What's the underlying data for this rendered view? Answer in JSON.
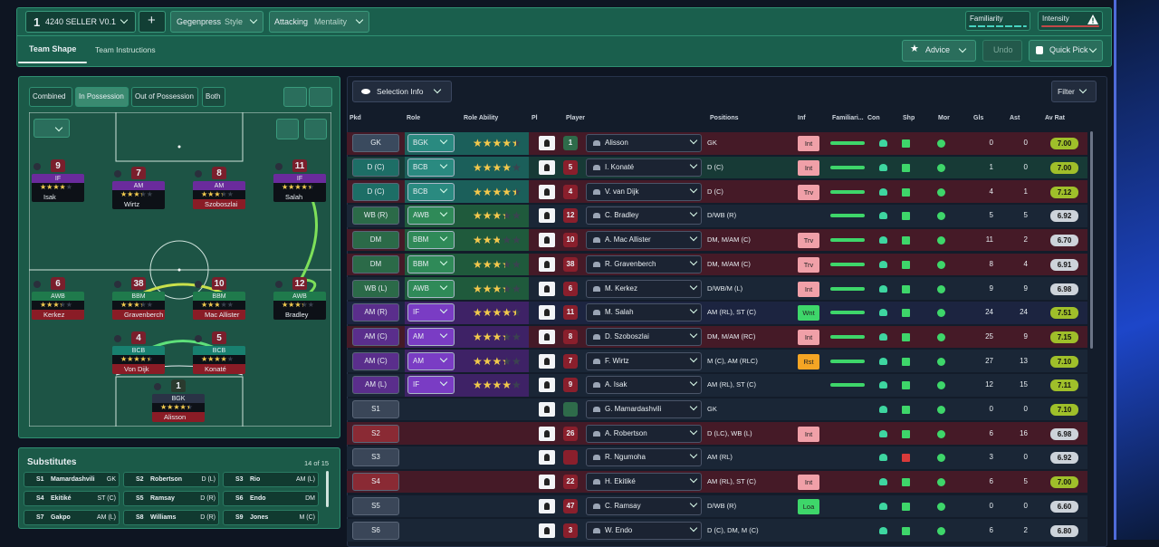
{
  "header": {
    "tactic_number": "1",
    "tactic_name": "4240 SELLER V0.1",
    "add": "+",
    "style_value": "Gegenpress",
    "style_label": "Style",
    "mentality_value": "Attacking",
    "mentality_label": "Mentality",
    "familiarity": "Familiarity",
    "intensity": "Intensity"
  },
  "tabs": [
    "Team Shape",
    "Team Instructions"
  ],
  "actions": {
    "advice": "Advice",
    "undo": "Undo",
    "quick_pick": "Quick Pick"
  },
  "pitch": {
    "views": [
      "Combined",
      "In Possession",
      "Out of Possession",
      "Both"
    ],
    "players": [
      {
        "number": 9,
        "role": "IF",
        "stars": 3.5,
        "name": "Isak"
      },
      {
        "number": 7,
        "role": "AM",
        "stars": 3,
        "name": "Wirtz"
      },
      {
        "number": 8,
        "role": "AM",
        "stars": 3,
        "name": "Szoboszlai"
      },
      {
        "number": 11,
        "role": "IF",
        "stars": 4,
        "name": "Salah"
      },
      {
        "number": 6,
        "role": "AWB",
        "stars": 3,
        "name": "Kerkez"
      },
      {
        "number": 38,
        "role": "BBM",
        "stars": 3,
        "name": "Gravenberch"
      },
      {
        "number": 10,
        "role": "BBM",
        "stars": 2.5,
        "name": "Mac Allister"
      },
      {
        "number": 12,
        "role": "AWB",
        "stars": 3,
        "name": "Bradley"
      },
      {
        "number": 4,
        "role": "BCB",
        "stars": 4,
        "name": "Von Dijk"
      },
      {
        "number": 5,
        "role": "BCB",
        "stars": 3.5,
        "name": "Konaté"
      },
      {
        "number": 1,
        "role": "BGK",
        "stars": 4,
        "name": "Alisson"
      }
    ]
  },
  "substitutes": {
    "title": "Substitutes",
    "count": "14 of 15",
    "players": [
      {
        "slot": "S1",
        "name": "Mamardashvili",
        "position": "GK"
      },
      {
        "slot": "S2",
        "name": "Robertson",
        "position": "D (L)"
      },
      {
        "slot": "S3",
        "name": "Rio",
        "position": "AM (L)"
      },
      {
        "slot": "S4",
        "name": "Ekitiké",
        "position": "ST (C)"
      },
      {
        "slot": "S5",
        "name": "Ramsay",
        "position": "D (R)"
      },
      {
        "slot": "S6",
        "name": "Endo",
        "position": "DM"
      },
      {
        "slot": "S7",
        "name": "Gakpo",
        "position": "AM (L)"
      },
      {
        "slot": "S8",
        "name": "Williams",
        "position": "D (R)"
      },
      {
        "slot": "S9",
        "name": "Jones",
        "position": "M (C)"
      }
    ]
  },
  "table": {
    "selection_info": "Selection Info",
    "filter": "Filter",
    "columns": [
      "Pkd",
      "Role",
      "Role Ability",
      "Pl",
      "Player",
      "Positions",
      "Inf",
      "Familiari...",
      "Con",
      "Shp",
      "Mor",
      "Gls",
      "Ast",
      "Av Rat"
    ],
    "rows": [
      {
        "pkd": "GK",
        "role": "BGK",
        "ability": 4,
        "number": 1,
        "player": "Alisson",
        "positions": "GK",
        "inf": "Int",
        "gls": 0,
        "ast": 0,
        "av_rat": "7.00"
      },
      {
        "pkd": "D (C)",
        "role": "BCB",
        "ability": 3.5,
        "number": 5,
        "player": "I. Konaté",
        "positions": "D (C)",
        "inf": "Int",
        "gls": 1,
        "ast": 0,
        "av_rat": "7.00"
      },
      {
        "pkd": "D (C)",
        "role": "BCB",
        "ability": 4,
        "number": 4,
        "player": "V. van Dijk",
        "positions": "D (C)",
        "inf": "Trv",
        "gls": 4,
        "ast": 1,
        "av_rat": "7.12"
      },
      {
        "pkd": "WB (R)",
        "role": "AWB",
        "ability": 3,
        "number": 12,
        "player": "C. Bradley",
        "positions": "D/WB (R)",
        "gls": 5,
        "ast": 5,
        "av_rat": "6.92"
      },
      {
        "pkd": "DM",
        "role": "BBM",
        "ability": 2.5,
        "number": 10,
        "player": "A. Mac Allister",
        "positions": "DM, M/AM (C)",
        "inf": "Trv",
        "gls": 11,
        "ast": 2,
        "av_rat": "6.70"
      },
      {
        "pkd": "DM",
        "role": "BBM",
        "ability": 3,
        "number": 38,
        "player": "R. Gravenberch",
        "positions": "DM, M/AM (C)",
        "inf": "Trv",
        "gls": 8,
        "ast": 4,
        "av_rat": "6.91"
      },
      {
        "pkd": "WB (L)",
        "role": "AWB",
        "ability": 3,
        "number": 6,
        "player": "M. Kerkez",
        "positions": "D/WB/M (L)",
        "inf": "Int",
        "gls": 9,
        "ast": 9,
        "av_rat": "6.98"
      },
      {
        "pkd": "AM (R)",
        "role": "IF",
        "ability": 4,
        "number": 11,
        "player": "M. Salah",
        "positions": "AM (RL), ST (C)",
        "inf": "Wnt",
        "gls": 24,
        "ast": 24,
        "av_rat": "7.51"
      },
      {
        "pkd": "AM (C)",
        "role": "AM",
        "ability": 3,
        "number": 8,
        "player": "D. Szoboszlai",
        "positions": "DM, M/AM (RC)",
        "inf": "Int",
        "gls": 25,
        "ast": 9,
        "av_rat": "7.15"
      },
      {
        "pkd": "AM (C)",
        "role": "AM",
        "ability": 3,
        "number": 7,
        "player": "F. Wirtz",
        "positions": "M (C), AM (RLC)",
        "inf": "Rst",
        "gls": 27,
        "ast": 13,
        "av_rat": "7.10"
      },
      {
        "pkd": "AM (L)",
        "role": "IF",
        "ability": 3.5,
        "number": 9,
        "player": "A. Isak",
        "positions": "AM (RL), ST (C)",
        "gls": 12,
        "ast": 15,
        "av_rat": "7.11"
      },
      {
        "pkd": "S1",
        "player": "G. Mamardashvili",
        "positions": "GK",
        "gls": 0,
        "ast": 0,
        "av_rat": "7.10"
      },
      {
        "pkd": "S2",
        "number": 26,
        "player": "A. Robertson",
        "positions": "D (LC), WB (L)",
        "inf": "Int",
        "gls": 6,
        "ast": 16,
        "av_rat": "6.98"
      },
      {
        "pkd": "S3",
        "player": "R. Ngumoha",
        "positions": "AM (RL)",
        "gls": 3,
        "ast": 0,
        "av_rat": "6.92"
      },
      {
        "pkd": "S4",
        "number": 22,
        "player": "H. Ekitiké",
        "positions": "AM (RL), ST (C)",
        "inf": "Int",
        "gls": 6,
        "ast": 5,
        "av_rat": "7.00"
      },
      {
        "pkd": "S5",
        "number": 47,
        "player": "C. Ramsay",
        "positions": "D/WB (R)",
        "inf": "Loa",
        "gls": 0,
        "ast": 0,
        "av_rat": "6.60"
      },
      {
        "pkd": "S6",
        "number": 3,
        "player": "W. Endo",
        "positions": "D (C), DM, M (C)",
        "gls": 6,
        "ast": 2,
        "av_rat": "6.80"
      }
    ]
  }
}
